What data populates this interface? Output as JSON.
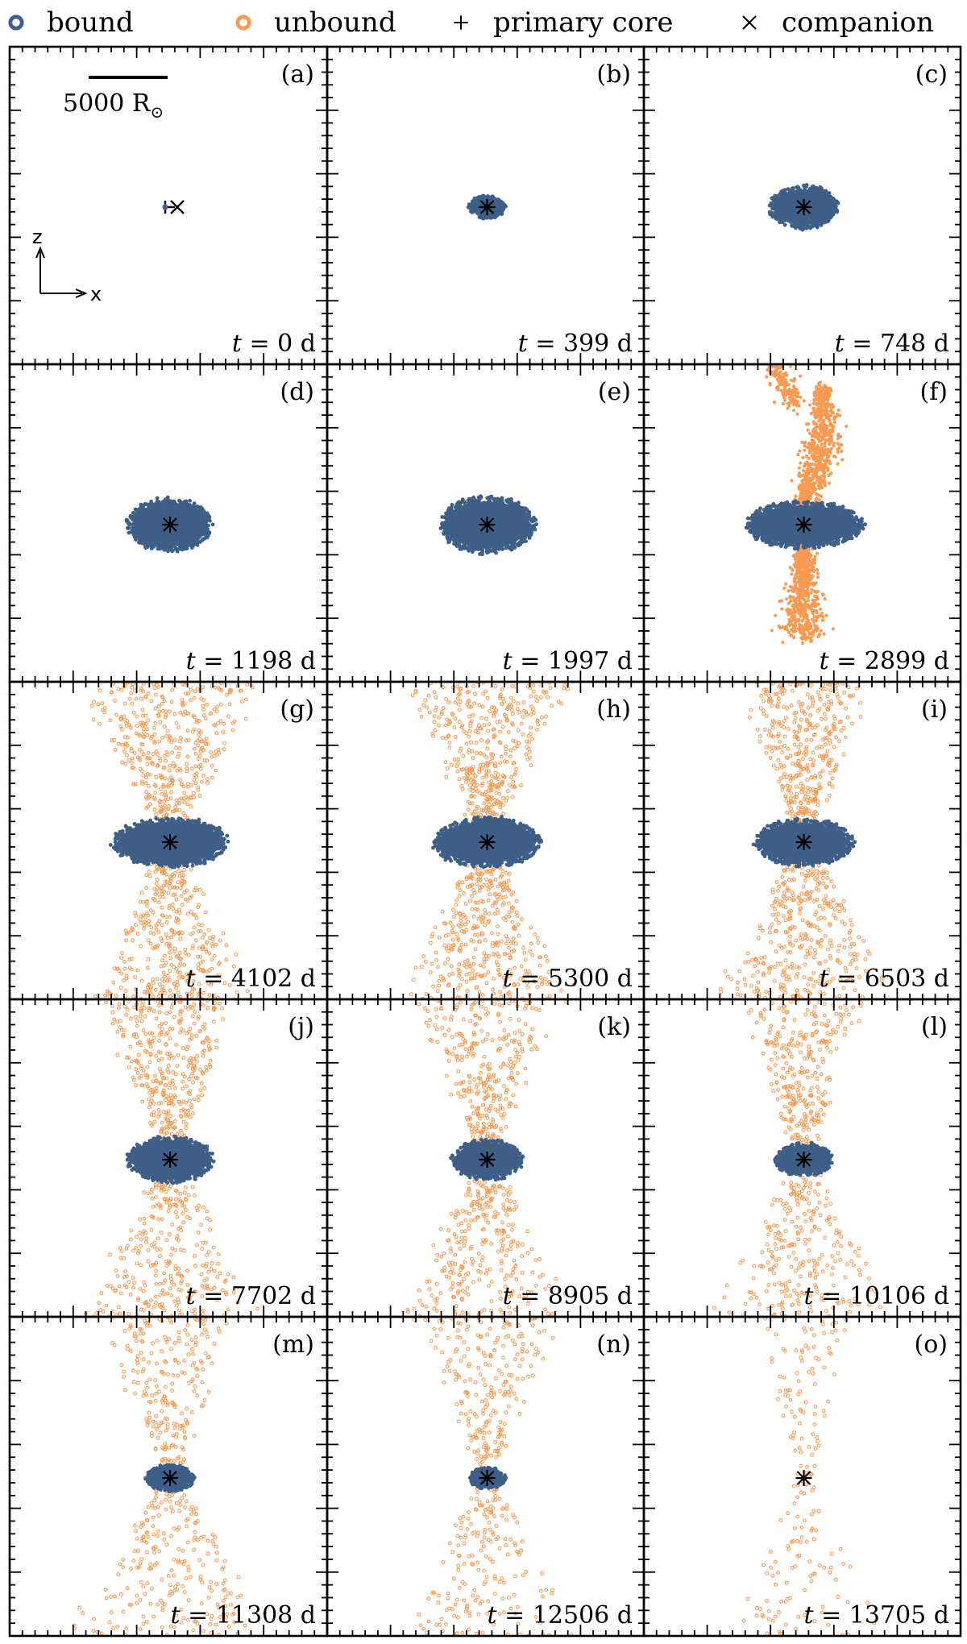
{
  "legend": {
    "bound": "bound",
    "unbound": "unbound",
    "primary_core": "primary core",
    "companion": "companion"
  },
  "scale_bar": {
    "label": "5000 R",
    "sun_symbol": "⊙"
  },
  "axes": {
    "vertical": "z",
    "horizontal": "x"
  },
  "colors": {
    "bound": "#3e5f87",
    "unbound": "#f89a52",
    "marker": "#000000"
  },
  "time_prefix": "t",
  "time_unit": "d",
  "panels": [
    {
      "id": "a",
      "label": "(a)",
      "time": "0"
    },
    {
      "id": "b",
      "label": "(b)",
      "time": "399"
    },
    {
      "id": "c",
      "label": "(c)",
      "time": "748"
    },
    {
      "id": "d",
      "label": "(d)",
      "time": "1198"
    },
    {
      "id": "e",
      "label": "(e)",
      "time": "1997"
    },
    {
      "id": "f",
      "label": "(f)",
      "time": "2899"
    },
    {
      "id": "g",
      "label": "(g)",
      "time": "4102"
    },
    {
      "id": "h",
      "label": "(h)",
      "time": "5300"
    },
    {
      "id": "i",
      "label": "(i)",
      "time": "6503"
    },
    {
      "id": "j",
      "label": "(j)",
      "time": "7702"
    },
    {
      "id": "k",
      "label": "(k)",
      "time": "8905"
    },
    {
      "id": "l",
      "label": "(l)",
      "time": "10106"
    },
    {
      "id": "m",
      "label": "(m)",
      "time": "11308"
    },
    {
      "id": "n",
      "label": "(n)",
      "time": "12506"
    },
    {
      "id": "o",
      "label": "(o)",
      "time": "13705"
    }
  ]
}
